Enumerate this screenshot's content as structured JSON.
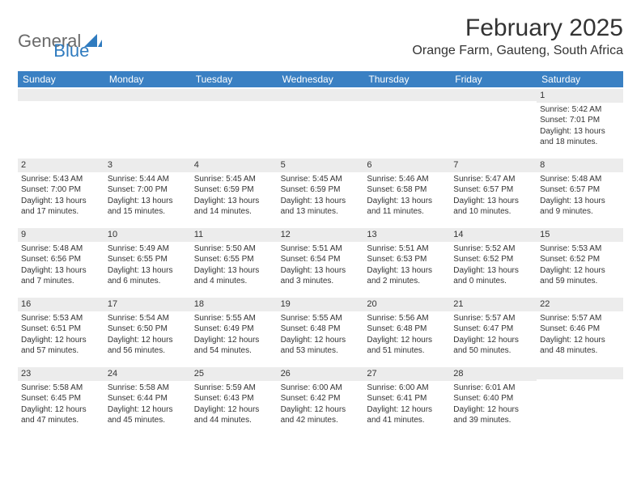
{
  "logo": {
    "text1": "General",
    "text2": "Blue"
  },
  "title": "February 2025",
  "location": "Orange Farm, Gauteng, South Africa",
  "colors": {
    "header_bg": "#3a80c3",
    "header_text": "#ffffff",
    "daybar_bg": "#ececec",
    "text": "#333333",
    "logo_gray": "#6a6a6a",
    "logo_blue": "#2f7bbf"
  },
  "weekdays": [
    "Sunday",
    "Monday",
    "Tuesday",
    "Wednesday",
    "Thursday",
    "Friday",
    "Saturday"
  ],
  "calendar": {
    "type": "table",
    "rows": [
      [
        {
          "day": "",
          "lines": []
        },
        {
          "day": "",
          "lines": []
        },
        {
          "day": "",
          "lines": []
        },
        {
          "day": "",
          "lines": []
        },
        {
          "day": "",
          "lines": []
        },
        {
          "day": "",
          "lines": []
        },
        {
          "day": "1",
          "lines": [
            "Sunrise: 5:42 AM",
            "Sunset: 7:01 PM",
            "Daylight: 13 hours and 18 minutes."
          ]
        }
      ],
      [
        {
          "day": "2",
          "lines": [
            "Sunrise: 5:43 AM",
            "Sunset: 7:00 PM",
            "Daylight: 13 hours and 17 minutes."
          ]
        },
        {
          "day": "3",
          "lines": [
            "Sunrise: 5:44 AM",
            "Sunset: 7:00 PM",
            "Daylight: 13 hours and 15 minutes."
          ]
        },
        {
          "day": "4",
          "lines": [
            "Sunrise: 5:45 AM",
            "Sunset: 6:59 PM",
            "Daylight: 13 hours and 14 minutes."
          ]
        },
        {
          "day": "5",
          "lines": [
            "Sunrise: 5:45 AM",
            "Sunset: 6:59 PM",
            "Daylight: 13 hours and 13 minutes."
          ]
        },
        {
          "day": "6",
          "lines": [
            "Sunrise: 5:46 AM",
            "Sunset: 6:58 PM",
            "Daylight: 13 hours and 11 minutes."
          ]
        },
        {
          "day": "7",
          "lines": [
            "Sunrise: 5:47 AM",
            "Sunset: 6:57 PM",
            "Daylight: 13 hours and 10 minutes."
          ]
        },
        {
          "day": "8",
          "lines": [
            "Sunrise: 5:48 AM",
            "Sunset: 6:57 PM",
            "Daylight: 13 hours and 9 minutes."
          ]
        }
      ],
      [
        {
          "day": "9",
          "lines": [
            "Sunrise: 5:48 AM",
            "Sunset: 6:56 PM",
            "Daylight: 13 hours and 7 minutes."
          ]
        },
        {
          "day": "10",
          "lines": [
            "Sunrise: 5:49 AM",
            "Sunset: 6:55 PM",
            "Daylight: 13 hours and 6 minutes."
          ]
        },
        {
          "day": "11",
          "lines": [
            "Sunrise: 5:50 AM",
            "Sunset: 6:55 PM",
            "Daylight: 13 hours and 4 minutes."
          ]
        },
        {
          "day": "12",
          "lines": [
            "Sunrise: 5:51 AM",
            "Sunset: 6:54 PM",
            "Daylight: 13 hours and 3 minutes."
          ]
        },
        {
          "day": "13",
          "lines": [
            "Sunrise: 5:51 AM",
            "Sunset: 6:53 PM",
            "Daylight: 13 hours and 2 minutes."
          ]
        },
        {
          "day": "14",
          "lines": [
            "Sunrise: 5:52 AM",
            "Sunset: 6:52 PM",
            "Daylight: 13 hours and 0 minutes."
          ]
        },
        {
          "day": "15",
          "lines": [
            "Sunrise: 5:53 AM",
            "Sunset: 6:52 PM",
            "Daylight: 12 hours and 59 minutes."
          ]
        }
      ],
      [
        {
          "day": "16",
          "lines": [
            "Sunrise: 5:53 AM",
            "Sunset: 6:51 PM",
            "Daylight: 12 hours and 57 minutes."
          ]
        },
        {
          "day": "17",
          "lines": [
            "Sunrise: 5:54 AM",
            "Sunset: 6:50 PM",
            "Daylight: 12 hours and 56 minutes."
          ]
        },
        {
          "day": "18",
          "lines": [
            "Sunrise: 5:55 AM",
            "Sunset: 6:49 PM",
            "Daylight: 12 hours and 54 minutes."
          ]
        },
        {
          "day": "19",
          "lines": [
            "Sunrise: 5:55 AM",
            "Sunset: 6:48 PM",
            "Daylight: 12 hours and 53 minutes."
          ]
        },
        {
          "day": "20",
          "lines": [
            "Sunrise: 5:56 AM",
            "Sunset: 6:48 PM",
            "Daylight: 12 hours and 51 minutes."
          ]
        },
        {
          "day": "21",
          "lines": [
            "Sunrise: 5:57 AM",
            "Sunset: 6:47 PM",
            "Daylight: 12 hours and 50 minutes."
          ]
        },
        {
          "day": "22",
          "lines": [
            "Sunrise: 5:57 AM",
            "Sunset: 6:46 PM",
            "Daylight: 12 hours and 48 minutes."
          ]
        }
      ],
      [
        {
          "day": "23",
          "lines": [
            "Sunrise: 5:58 AM",
            "Sunset: 6:45 PM",
            "Daylight: 12 hours and 47 minutes."
          ]
        },
        {
          "day": "24",
          "lines": [
            "Sunrise: 5:58 AM",
            "Sunset: 6:44 PM",
            "Daylight: 12 hours and 45 minutes."
          ]
        },
        {
          "day": "25",
          "lines": [
            "Sunrise: 5:59 AM",
            "Sunset: 6:43 PM",
            "Daylight: 12 hours and 44 minutes."
          ]
        },
        {
          "day": "26",
          "lines": [
            "Sunrise: 6:00 AM",
            "Sunset: 6:42 PM",
            "Daylight: 12 hours and 42 minutes."
          ]
        },
        {
          "day": "27",
          "lines": [
            "Sunrise: 6:00 AM",
            "Sunset: 6:41 PM",
            "Daylight: 12 hours and 41 minutes."
          ]
        },
        {
          "day": "28",
          "lines": [
            "Sunrise: 6:01 AM",
            "Sunset: 6:40 PM",
            "Daylight: 12 hours and 39 minutes."
          ]
        },
        {
          "day": "",
          "lines": []
        }
      ]
    ]
  }
}
